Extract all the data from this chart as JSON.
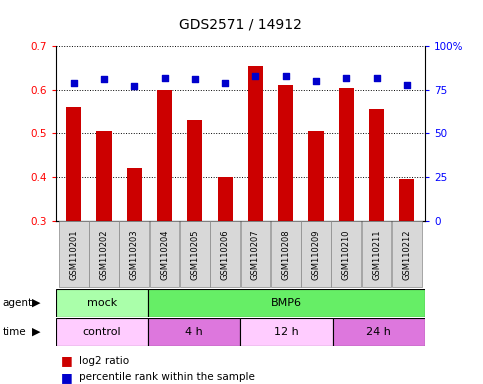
{
  "title": "GDS2571 / 14912",
  "samples": [
    "GSM110201",
    "GSM110202",
    "GSM110203",
    "GSM110204",
    "GSM110205",
    "GSM110206",
    "GSM110207",
    "GSM110208",
    "GSM110209",
    "GSM110210",
    "GSM110211",
    "GSM110212"
  ],
  "log2_ratio": [
    0.56,
    0.505,
    0.42,
    0.6,
    0.53,
    0.4,
    0.655,
    0.61,
    0.505,
    0.605,
    0.555,
    0.395
  ],
  "percentile_rank": [
    79,
    81,
    77,
    82,
    81,
    79,
    83,
    83,
    80,
    82,
    82,
    78
  ],
  "ylim_left": [
    0.3,
    0.7
  ],
  "ylim_right": [
    0,
    100
  ],
  "yticks_left": [
    0.3,
    0.4,
    0.5,
    0.6,
    0.7
  ],
  "yticks_right": [
    0,
    25,
    50,
    75,
    100
  ],
  "bar_color": "#cc0000",
  "dot_color": "#0000cc",
  "bar_width": 0.5,
  "agent_row": [
    {
      "label": "mock",
      "start": 0,
      "end": 3,
      "color": "#aaffaa"
    },
    {
      "label": "BMP6",
      "start": 3,
      "end": 12,
      "color": "#66ee66"
    }
  ],
  "time_row": [
    {
      "label": "control",
      "start": 0,
      "end": 3,
      "color": "#ffccff"
    },
    {
      "label": "4 h",
      "start": 3,
      "end": 6,
      "color": "#dd77dd"
    },
    {
      "label": "12 h",
      "start": 6,
      "end": 9,
      "color": "#ffccff"
    },
    {
      "label": "24 h",
      "start": 9,
      "end": 12,
      "color": "#dd77dd"
    }
  ],
  "legend_bar_label": "log2 ratio",
  "legend_dot_label": "percentile rank within the sample",
  "background_color": "#ffffff",
  "plot_bg_color": "#ffffff",
  "grid_color": "#000000",
  "title_fontsize": 10,
  "tick_fontsize": 7.5,
  "sample_fontsize": 6,
  "row_fontsize": 8,
  "legend_fontsize": 7.5
}
